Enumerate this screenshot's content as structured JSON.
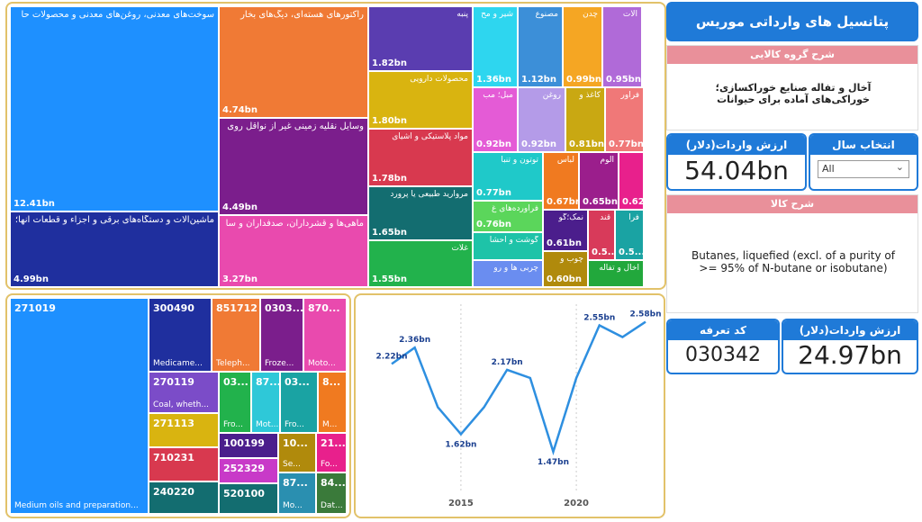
{
  "title": "پتانسیل های وارداتی موریس",
  "group_desc_header": "شرح گروه کالایی",
  "group_desc_text": "آخال و تفاله صنایع خوراکسازی؛ خوراکی‌های آماده برای حیوانات",
  "import_value_header": "ارزش واردات(دلار)",
  "import_value_total": "54.04bn",
  "year_select_header": "انتخاب سال",
  "year_select_value": "All",
  "goods_desc_header": "شرح کالا",
  "goods_desc_text": "Butanes, liquefied (excl. of a purity of >= 95% of N-butane or isobutane)",
  "tariff_header": "کد تعرفه",
  "tariff_value": "030342",
  "import_value_header2": "ارزش واردات(دلار)",
  "import_value_item": "24.97bn",
  "colors": {
    "accent": "#1f7ad8",
    "pink": "#e9909a",
    "line": "#2e8fe0",
    "border": "#e2c26a"
  },
  "treemap1": [
    {
      "label": "سوخت‌های معدنی، روغن‌های معدنی و محصولات حا",
      "value": "12.41bn",
      "color": "#1e90ff"
    },
    {
      "label": "ماشین‌آلات و دستگاه‌های برقی و اجزاء و قطعات آنها؛",
      "value": "4.99bn",
      "color": "#1f2f9e"
    },
    {
      "label": "رآکتورهای هسته‌ای، دیگ‌های بخار",
      "value": "4.74bn",
      "color": "#f07a35"
    },
    {
      "label": "وسایل نقلیه زمینی غیر از نواقل روی",
      "value": "4.49bn",
      "color": "#7b1e8c"
    },
    {
      "label": "ماهی‌ها و قشرداران، صدفداران و سا",
      "value": "3.27bn",
      "color": "#e94aae"
    },
    {
      "label": "پنبه",
      "value": "1.82bn",
      "color": "#5a3db0"
    },
    {
      "label": "محصولات دارویی",
      "value": "1.80bn",
      "color": "#d9b410"
    },
    {
      "label": "مواد پلاستیکی و اشیای",
      "value": "1.78bn",
      "color": "#d8394f"
    },
    {
      "label": "مروارید طبیعی یا پرورد",
      "value": "1.65bn",
      "color": "#136d70"
    },
    {
      "label": "غلات",
      "value": "1.55bn",
      "color": "#22b24c"
    },
    {
      "label": "شیر و مح",
      "value": "1.36bn",
      "color": "#2ed6ef"
    },
    {
      "label": "مصنوع",
      "value": "1.12bn",
      "color": "#3c8fd8"
    },
    {
      "label": "چدن",
      "value": "0.99bn",
      "color": "#f5a623"
    },
    {
      "label": "آلات",
      "value": "0.95bn",
      "color": "#b06ad8"
    },
    {
      "label": "مبل؛ مب",
      "value": "0.92bn",
      "color": "#e45bd6"
    },
    {
      "label": "روغن",
      "value": "0.92bn",
      "color": "#b49be8"
    },
    {
      "label": "کاغذ و",
      "value": "0.81bn",
      "color": "#c9a812"
    },
    {
      "label": "فرآور",
      "value": "0.77bn",
      "color": "#f07878"
    },
    {
      "label": "توتون و تنبا",
      "value": "0.77bn",
      "color": "#1fc9c9"
    },
    {
      "label": "فرآورده‌های غ",
      "value": "0.76bn",
      "color": "#5bd65b"
    },
    {
      "label": "لباس",
      "value": "0.67bn",
      "color": "#f07a20"
    },
    {
      "label": "آلوم",
      "value": "0.65bn",
      "color": "#9b1e8c"
    },
    {
      "label": "",
      "value": "0.62bn",
      "color": "#e8208c"
    },
    {
      "label": "گوشت و احشا",
      "value": "",
      "color": "#1ec3a8"
    },
    {
      "label": "چربی ها و رو",
      "value": "",
      "color": "#6a8df0"
    },
    {
      "label": "نمک؛گو",
      "value": "0.61bn",
      "color": "#4b1e8c"
    },
    {
      "label": "قند",
      "value": "0.5...",
      "color": "#d83a5a"
    },
    {
      "label": "فرآ",
      "value": "0.5...",
      "color": "#1aa3a3"
    },
    {
      "label": "چوب و",
      "value": "0.60bn",
      "color": "#b08a0c"
    },
    {
      "label": "آخال و تفاله",
      "value": "",
      "color": "#22a83c"
    }
  ],
  "treemap2": [
    {
      "code": "271019",
      "sub": "Medium oils and preparation...",
      "color": "#1e90ff"
    },
    {
      "code": "300490",
      "sub": "Medicame...",
      "color": "#1f2f9e"
    },
    {
      "code": "851712",
      "sub": "Teleph...",
      "color": "#f07a35"
    },
    {
      "code": "0303...",
      "sub": "Froze...",
      "color": "#7b1e8c"
    },
    {
      "code": "870...",
      "sub": "Moto...",
      "color": "#e94aae"
    },
    {
      "code": "270119",
      "sub": "Coal, wheth...",
      "color": "#7b4cc8"
    },
    {
      "code": "03...",
      "sub": "Fro...",
      "color": "#22b24c"
    },
    {
      "code": "87...",
      "sub": "Mot...",
      "color": "#2ec8d8"
    },
    {
      "code": "03...",
      "sub": "Fro...",
      "color": "#1aa3a3"
    },
    {
      "code": "8...",
      "sub": "M...",
      "color": "#f07a20"
    },
    {
      "code": "271113",
      "sub": "",
      "color": "#d9b410"
    },
    {
      "code": "710231",
      "sub": "",
      "color": "#d8394f"
    },
    {
      "code": "240220",
      "sub": "",
      "color": "#136d70"
    },
    {
      "code": "100199",
      "sub": "",
      "color": "#4b1e8c"
    },
    {
      "code": "10...",
      "sub": "Se...",
      "color": "#b08a0c"
    },
    {
      "code": "21...",
      "sub": "Fo...",
      "color": "#e8208c"
    },
    {
      "code": "252329",
      "sub": "",
      "color": "#c83ac8"
    },
    {
      "code": "520100",
      "sub": "",
      "color": "#136d70"
    },
    {
      "code": "87...",
      "sub": "Mo...",
      "color": "#2a8fb0"
    },
    {
      "code": "84...",
      "sub": "Dat...",
      "color": "#3a7a3a"
    }
  ],
  "chart_data": {
    "type": "line",
    "x": [
      2012,
      2013,
      2014,
      2015,
      2016,
      2017,
      2018,
      2019,
      2020,
      2021,
      2022,
      2023
    ],
    "values": [
      2.22,
      2.36,
      1.85,
      1.62,
      1.85,
      2.17,
      2.1,
      1.47,
      2.1,
      2.55,
      2.45,
      2.58
    ],
    "labels": [
      "2.22bn",
      "2.36bn",
      "",
      "1.62bn",
      "",
      "2.17bn",
      "",
      "1.47bn",
      "",
      "2.55bn",
      "",
      "2.58bn"
    ],
    "x_ticks": [
      "2015",
      "2020"
    ],
    "ylim": [
      1.3,
      2.7
    ]
  }
}
